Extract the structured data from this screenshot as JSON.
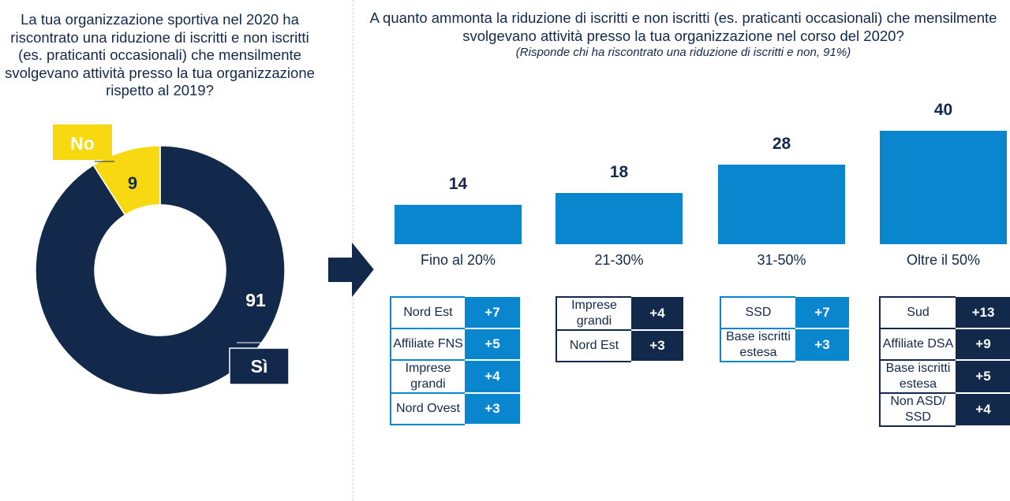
{
  "left_question": "La tua organizzazione sportiva nel 2020 ha riscontrato una riduzione di iscritti e non iscritti (es. praticanti occasionali) che mensilmente svolgevano attività presso la tua organizzazione rispetto al 2019?",
  "right_question": "A quanto ammonta la riduzione di iscritti e non iscritti (es. praticanti occasionali) che mensilmente svolgevano attività presso la tua organizzazione nel corso del 2020?",
  "right_subtitle": "(Risponde chi ha riscontrato una riduzione di iscritti e non, 91%)",
  "colors": {
    "navy": "#13294b",
    "blue": "#0a86cf",
    "yellow": "#f8d810"
  },
  "chart_data": [
    {
      "type": "pie",
      "labels": [
        "Sì",
        "No"
      ],
      "values": [
        91,
        9
      ],
      "colors": [
        "#13294b",
        "#f8d810"
      ]
    },
    {
      "type": "bar",
      "categories": [
        "Fino al 20%",
        "21-30%",
        "31-50%",
        "Oltre il 50%"
      ],
      "values": [
        14,
        18,
        28,
        40
      ],
      "color": "#0a86cf",
      "ylim": [
        0,
        40
      ]
    }
  ],
  "segments": [
    {
      "style": "light",
      "rows": [
        {
          "label": "Nord Est",
          "value": "+7"
        },
        {
          "label": "Affiliate FNS",
          "value": "+5"
        },
        {
          "label": "Imprese grandi",
          "value": "+4"
        },
        {
          "label": "Nord Ovest",
          "value": "+3"
        }
      ]
    },
    {
      "style": "dark",
      "rows": [
        {
          "label": "Imprese grandi",
          "value": "+4"
        },
        {
          "label": "Nord Est",
          "value": "+3"
        }
      ]
    },
    {
      "style": "light",
      "rows": [
        {
          "label": "SSD",
          "value": "+7"
        },
        {
          "label": "Base iscritti estesa",
          "value": "+3"
        }
      ]
    },
    {
      "style": "dark",
      "rows": [
        {
          "label": "Sud",
          "value": "+13"
        },
        {
          "label": "Affiliate DSA",
          "value": "+9"
        },
        {
          "label": "Base iscritti estesa",
          "value": "+5"
        },
        {
          "label": "Non ASD/ SSD",
          "value": "+4"
        }
      ]
    }
  ]
}
